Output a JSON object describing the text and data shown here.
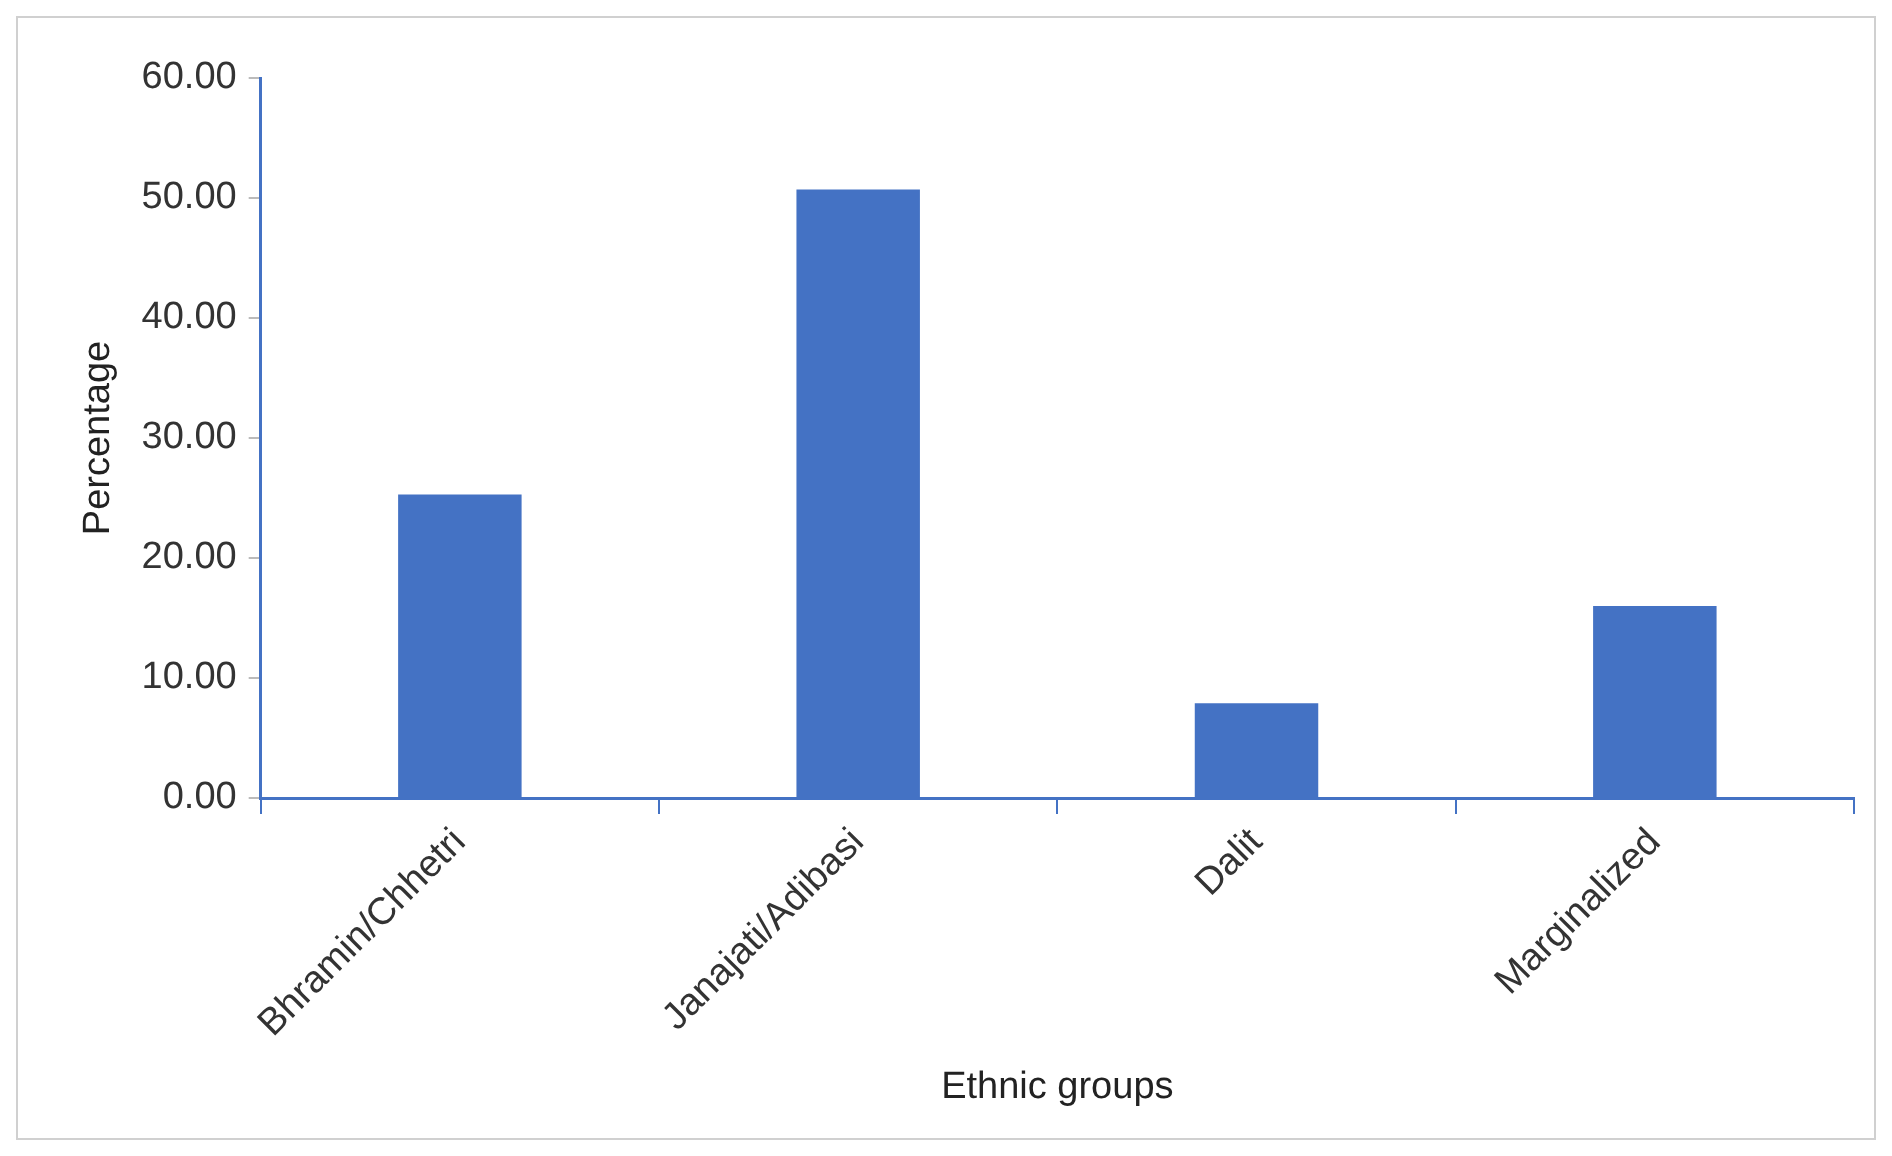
{
  "chart_data": {
    "type": "bar",
    "xlabel": "Ethnic groups",
    "ylabel": "Percentage",
    "categories": [
      "Bhramin/Chhetri",
      "Janajati/Adibasi",
      "Dalit",
      "Marginalized"
    ],
    "values": [
      25.3,
      50.7,
      7.9,
      16.0
    ],
    "color": "#4472c4",
    "ylim": [
      0,
      60
    ],
    "yticks": [
      {
        "value": 0,
        "label": "0.00"
      },
      {
        "value": 10,
        "label": "10.00"
      },
      {
        "value": 20,
        "label": "20.00"
      },
      {
        "value": 30,
        "label": "30.00"
      },
      {
        "value": 40,
        "label": "40.00"
      },
      {
        "value": 50,
        "label": "50.00"
      },
      {
        "value": 60,
        "label": "60.00"
      }
    ],
    "grid": false,
    "legend": false
  }
}
